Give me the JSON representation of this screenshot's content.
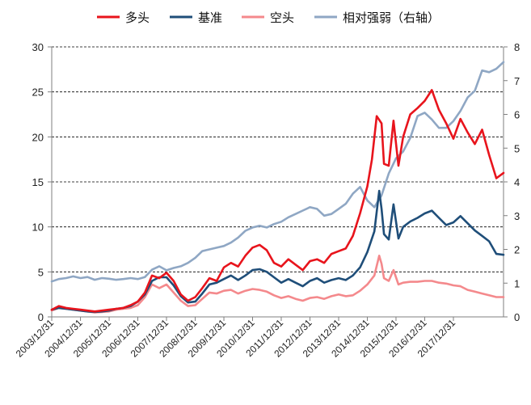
{
  "chart_data": {
    "type": "line",
    "title": "",
    "xlabel": "",
    "ylabel": "",
    "x_range": [
      "2003-12-31",
      "2019-09-30"
    ],
    "ylim_left": [
      0,
      30
    ],
    "ylim_right": [
      0,
      8
    ],
    "y_ticks_left": [
      "0",
      "5",
      "10",
      "15",
      "20",
      "25",
      "30"
    ],
    "y_ticks_right": [
      "0",
      "1",
      "2",
      "3",
      "4",
      "5",
      "6",
      "7",
      "8"
    ],
    "x_ticks": [
      "2003/12/31",
      "2004/12/31",
      "2005/12/31",
      "2006/12/31",
      "2007/12/31",
      "2008/12/31",
      "2009/12/31",
      "2010/12/31",
      "2011/12/31",
      "2012/12/31",
      "2013/12/31",
      "2014/12/31",
      "2015/12/31",
      "2016/12/31",
      "2017/12/31"
    ],
    "grid": "horizontal dashed",
    "legend_position": "top",
    "series": [
      {
        "name": "多头",
        "color": "#e8141c",
        "axis": "left",
        "points": [
          [
            "2003-12-31",
            0.8
          ],
          [
            "2004-03-31",
            1.2
          ],
          [
            "2004-06-30",
            1.0
          ],
          [
            "2004-09-30",
            0.9
          ],
          [
            "2004-12-31",
            0.8
          ],
          [
            "2005-03-31",
            0.7
          ],
          [
            "2005-06-30",
            0.6
          ],
          [
            "2005-09-30",
            0.7
          ],
          [
            "2005-12-31",
            0.8
          ],
          [
            "2006-03-31",
            0.9
          ],
          [
            "2006-06-30",
            1.0
          ],
          [
            "2006-09-30",
            1.3
          ],
          [
            "2006-12-31",
            1.7
          ],
          [
            "2007-03-31",
            2.7
          ],
          [
            "2007-06-30",
            4.6
          ],
          [
            "2007-09-30",
            4.3
          ],
          [
            "2007-12-31",
            4.9
          ],
          [
            "2008-03-31",
            4.0
          ],
          [
            "2008-06-30",
            2.5
          ],
          [
            "2008-09-30",
            1.8
          ],
          [
            "2008-12-31",
            2.2
          ],
          [
            "2009-03-31",
            3.2
          ],
          [
            "2009-06-30",
            4.3
          ],
          [
            "2009-09-30",
            4.0
          ],
          [
            "2009-12-31",
            5.5
          ],
          [
            "2010-03-31",
            6.0
          ],
          [
            "2010-06-30",
            5.6
          ],
          [
            "2010-09-30",
            6.8
          ],
          [
            "2010-12-31",
            7.7
          ],
          [
            "2011-03-31",
            8.0
          ],
          [
            "2011-06-30",
            7.4
          ],
          [
            "2011-09-30",
            6.0
          ],
          [
            "2011-12-31",
            5.6
          ],
          [
            "2012-03-31",
            6.4
          ],
          [
            "2012-06-30",
            5.8
          ],
          [
            "2012-09-30",
            5.2
          ],
          [
            "2012-12-31",
            6.2
          ],
          [
            "2013-03-31",
            6.4
          ],
          [
            "2013-06-30",
            6.0
          ],
          [
            "2013-09-30",
            7.0
          ],
          [
            "2013-12-31",
            7.3
          ],
          [
            "2014-03-31",
            7.6
          ],
          [
            "2014-06-30",
            9.0
          ],
          [
            "2014-09-30",
            11.5
          ],
          [
            "2014-12-31",
            14.5
          ],
          [
            "2015-02-28",
            17.5
          ],
          [
            "2015-04-30",
            22.3
          ],
          [
            "2015-06-30",
            21.5
          ],
          [
            "2015-07-31",
            17.0
          ],
          [
            "2015-09-30",
            16.8
          ],
          [
            "2015-11-30",
            21.8
          ],
          [
            "2016-01-31",
            16.8
          ],
          [
            "2016-03-31",
            20.0
          ],
          [
            "2016-06-30",
            22.5
          ],
          [
            "2016-09-30",
            23.2
          ],
          [
            "2016-12-31",
            24.0
          ],
          [
            "2017-03-31",
            25.2
          ],
          [
            "2017-06-30",
            23.0
          ],
          [
            "2017-09-30",
            21.5
          ],
          [
            "2017-12-31",
            19.8
          ],
          [
            "2018-03-31",
            22.0
          ],
          [
            "2018-06-30",
            20.5
          ],
          [
            "2018-09-30",
            19.2
          ],
          [
            "2018-12-31",
            20.8
          ],
          [
            "2019-03-31",
            18.0
          ],
          [
            "2019-06-30",
            15.4
          ],
          [
            "2019-09-30",
            16.0
          ]
        ]
      },
      {
        "name": "基准",
        "color": "#1f4e79",
        "axis": "left",
        "points": [
          [
            "2003-12-31",
            0.8
          ],
          [
            "2004-03-31",
            1.0
          ],
          [
            "2004-06-30",
            0.9
          ],
          [
            "2004-09-30",
            0.8
          ],
          [
            "2004-12-31",
            0.7
          ],
          [
            "2005-03-31",
            0.6
          ],
          [
            "2005-06-30",
            0.55
          ],
          [
            "2005-09-30",
            0.6
          ],
          [
            "2005-12-31",
            0.7
          ],
          [
            "2006-03-31",
            0.9
          ],
          [
            "2006-06-30",
            1.0
          ],
          [
            "2006-09-30",
            1.2
          ],
          [
            "2006-12-31",
            1.7
          ],
          [
            "2007-03-31",
            2.5
          ],
          [
            "2007-06-30",
            4.0
          ],
          [
            "2007-09-30",
            4.4
          ],
          [
            "2007-12-31",
            4.4
          ],
          [
            "2008-03-31",
            3.5
          ],
          [
            "2008-06-30",
            2.3
          ],
          [
            "2008-09-30",
            1.6
          ],
          [
            "2008-12-31",
            1.7
          ],
          [
            "2009-03-31",
            2.6
          ],
          [
            "2009-06-30",
            3.6
          ],
          [
            "2009-09-30",
            3.8
          ],
          [
            "2009-12-31",
            4.2
          ],
          [
            "2010-03-31",
            4.6
          ],
          [
            "2010-06-30",
            4.1
          ],
          [
            "2010-09-30",
            4.6
          ],
          [
            "2010-12-31",
            5.2
          ],
          [
            "2011-03-31",
            5.3
          ],
          [
            "2011-06-30",
            5.0
          ],
          [
            "2011-09-30",
            4.4
          ],
          [
            "2011-12-31",
            3.8
          ],
          [
            "2012-03-31",
            4.2
          ],
          [
            "2012-06-30",
            3.8
          ],
          [
            "2012-09-30",
            3.4
          ],
          [
            "2012-12-31",
            4.0
          ],
          [
            "2013-03-31",
            4.3
          ],
          [
            "2013-06-30",
            3.8
          ],
          [
            "2013-09-30",
            4.1
          ],
          [
            "2013-12-31",
            4.3
          ],
          [
            "2014-03-31",
            4.1
          ],
          [
            "2014-06-30",
            4.6
          ],
          [
            "2014-09-30",
            5.5
          ],
          [
            "2014-12-31",
            7.2
          ],
          [
            "2015-03-31",
            9.5
          ],
          [
            "2015-05-31",
            14.0
          ],
          [
            "2015-06-30",
            12.0
          ],
          [
            "2015-07-31",
            9.2
          ],
          [
            "2015-09-30",
            8.6
          ],
          [
            "2015-11-30",
            12.5
          ],
          [
            "2016-01-31",
            8.7
          ],
          [
            "2016-03-31",
            10.0
          ],
          [
            "2016-06-30",
            10.6
          ],
          [
            "2016-09-30",
            11.0
          ],
          [
            "2016-12-31",
            11.5
          ],
          [
            "2017-03-31",
            11.8
          ],
          [
            "2017-06-30",
            11.0
          ],
          [
            "2017-09-30",
            10.2
          ],
          [
            "2017-12-31",
            10.5
          ],
          [
            "2018-03-31",
            11.2
          ],
          [
            "2018-06-30",
            10.4
          ],
          [
            "2018-09-30",
            9.6
          ],
          [
            "2018-12-31",
            9.0
          ],
          [
            "2019-03-31",
            8.4
          ],
          [
            "2019-06-30",
            7.0
          ],
          [
            "2019-09-30",
            6.9
          ]
        ]
      },
      {
        "name": "空头",
        "color": "#f4898c",
        "axis": "left",
        "points": [
          [
            "2003-12-31",
            0.7
          ],
          [
            "2004-03-31",
            1.0
          ],
          [
            "2004-06-30",
            0.9
          ],
          [
            "2004-09-30",
            0.8
          ],
          [
            "2004-12-31",
            0.7
          ],
          [
            "2005-03-31",
            0.6
          ],
          [
            "2005-06-30",
            0.5
          ],
          [
            "2005-09-30",
            0.55
          ],
          [
            "2005-12-31",
            0.6
          ],
          [
            "2006-03-31",
            0.8
          ],
          [
            "2006-06-30",
            0.9
          ],
          [
            "2006-09-30",
            1.0
          ],
          [
            "2006-12-31",
            1.3
          ],
          [
            "2007-03-31",
            2.2
          ],
          [
            "2007-06-30",
            3.6
          ],
          [
            "2007-09-30",
            3.2
          ],
          [
            "2007-12-31",
            3.6
          ],
          [
            "2008-03-31",
            2.7
          ],
          [
            "2008-06-30",
            1.8
          ],
          [
            "2008-09-30",
            1.2
          ],
          [
            "2008-12-31",
            1.3
          ],
          [
            "2009-03-31",
            2.0
          ],
          [
            "2009-06-30",
            2.7
          ],
          [
            "2009-09-30",
            2.6
          ],
          [
            "2009-12-31",
            2.9
          ],
          [
            "2010-03-31",
            3.0
          ],
          [
            "2010-06-30",
            2.6
          ],
          [
            "2010-09-30",
            2.9
          ],
          [
            "2010-12-31",
            3.1
          ],
          [
            "2011-03-31",
            3.0
          ],
          [
            "2011-06-30",
            2.8
          ],
          [
            "2011-09-30",
            2.4
          ],
          [
            "2011-12-31",
            2.1
          ],
          [
            "2012-03-31",
            2.3
          ],
          [
            "2012-06-30",
            2.0
          ],
          [
            "2012-09-30",
            1.8
          ],
          [
            "2012-12-31",
            2.1
          ],
          [
            "2013-03-31",
            2.2
          ],
          [
            "2013-06-30",
            2.0
          ],
          [
            "2013-09-30",
            2.3
          ],
          [
            "2013-12-31",
            2.5
          ],
          [
            "2014-03-31",
            2.3
          ],
          [
            "2014-06-30",
            2.4
          ],
          [
            "2014-09-30",
            2.9
          ],
          [
            "2014-12-31",
            3.6
          ],
          [
            "2015-03-31",
            4.6
          ],
          [
            "2015-05-31",
            6.8
          ],
          [
            "2015-06-30",
            5.9
          ],
          [
            "2015-07-31",
            4.3
          ],
          [
            "2015-09-30",
            4.0
          ],
          [
            "2015-11-30",
            5.2
          ],
          [
            "2016-01-31",
            3.6
          ],
          [
            "2016-03-31",
            3.8
          ],
          [
            "2016-06-30",
            3.9
          ],
          [
            "2016-09-30",
            3.9
          ],
          [
            "2016-12-31",
            4.0
          ],
          [
            "2017-03-31",
            4.0
          ],
          [
            "2017-06-30",
            3.8
          ],
          [
            "2017-09-30",
            3.7
          ],
          [
            "2017-12-31",
            3.5
          ],
          [
            "2018-03-31",
            3.4
          ],
          [
            "2018-06-30",
            3.0
          ],
          [
            "2018-09-30",
            2.8
          ],
          [
            "2018-12-31",
            2.6
          ],
          [
            "2019-03-31",
            2.4
          ],
          [
            "2019-06-30",
            2.2
          ],
          [
            "2019-09-30",
            2.2
          ]
        ]
      },
      {
        "name": "相对强弱（右轴）",
        "color": "#8fa7c4",
        "axis": "right",
        "points": [
          [
            "2003-12-31",
            1.05
          ],
          [
            "2004-03-31",
            1.12
          ],
          [
            "2004-06-30",
            1.15
          ],
          [
            "2004-09-30",
            1.2
          ],
          [
            "2004-12-31",
            1.15
          ],
          [
            "2005-03-31",
            1.18
          ],
          [
            "2005-06-30",
            1.1
          ],
          [
            "2005-09-30",
            1.15
          ],
          [
            "2005-12-31",
            1.13
          ],
          [
            "2006-03-31",
            1.1
          ],
          [
            "2006-06-30",
            1.12
          ],
          [
            "2006-09-30",
            1.15
          ],
          [
            "2006-12-31",
            1.12
          ],
          [
            "2007-03-31",
            1.18
          ],
          [
            "2007-06-30",
            1.4
          ],
          [
            "2007-09-30",
            1.5
          ],
          [
            "2007-12-31",
            1.38
          ],
          [
            "2008-03-31",
            1.45
          ],
          [
            "2008-06-30",
            1.5
          ],
          [
            "2008-09-30",
            1.6
          ],
          [
            "2008-12-31",
            1.75
          ],
          [
            "2009-03-31",
            1.95
          ],
          [
            "2009-06-30",
            2.0
          ],
          [
            "2009-09-30",
            2.05
          ],
          [
            "2009-12-31",
            2.1
          ],
          [
            "2010-03-31",
            2.2
          ],
          [
            "2010-06-30",
            2.35
          ],
          [
            "2010-09-30",
            2.55
          ],
          [
            "2010-12-31",
            2.65
          ],
          [
            "2011-03-31",
            2.7
          ],
          [
            "2011-06-30",
            2.65
          ],
          [
            "2011-09-30",
            2.75
          ],
          [
            "2011-12-31",
            2.82
          ],
          [
            "2012-03-31",
            2.95
          ],
          [
            "2012-06-30",
            3.05
          ],
          [
            "2012-09-30",
            3.15
          ],
          [
            "2012-12-31",
            3.25
          ],
          [
            "2013-03-31",
            3.2
          ],
          [
            "2013-06-30",
            3.0
          ],
          [
            "2013-09-30",
            3.05
          ],
          [
            "2013-12-31",
            3.2
          ],
          [
            "2014-03-31",
            3.35
          ],
          [
            "2014-06-30",
            3.65
          ],
          [
            "2014-09-30",
            3.85
          ],
          [
            "2014-12-31",
            3.45
          ],
          [
            "2015-03-31",
            3.25
          ],
          [
            "2015-06-30",
            3.6
          ],
          [
            "2015-09-30",
            4.25
          ],
          [
            "2015-12-31",
            4.7
          ],
          [
            "2016-03-31",
            4.9
          ],
          [
            "2016-06-30",
            5.3
          ],
          [
            "2016-09-30",
            5.95
          ],
          [
            "2016-12-31",
            6.05
          ],
          [
            "2017-03-31",
            5.85
          ],
          [
            "2017-06-30",
            5.6
          ],
          [
            "2017-09-30",
            5.6
          ],
          [
            "2017-12-31",
            5.8
          ],
          [
            "2018-03-31",
            6.1
          ],
          [
            "2018-06-30",
            6.5
          ],
          [
            "2018-09-30",
            6.7
          ],
          [
            "2018-12-31",
            7.3
          ],
          [
            "2019-03-31",
            7.25
          ],
          [
            "2019-06-30",
            7.35
          ],
          [
            "2019-09-30",
            7.55
          ]
        ]
      }
    ]
  }
}
